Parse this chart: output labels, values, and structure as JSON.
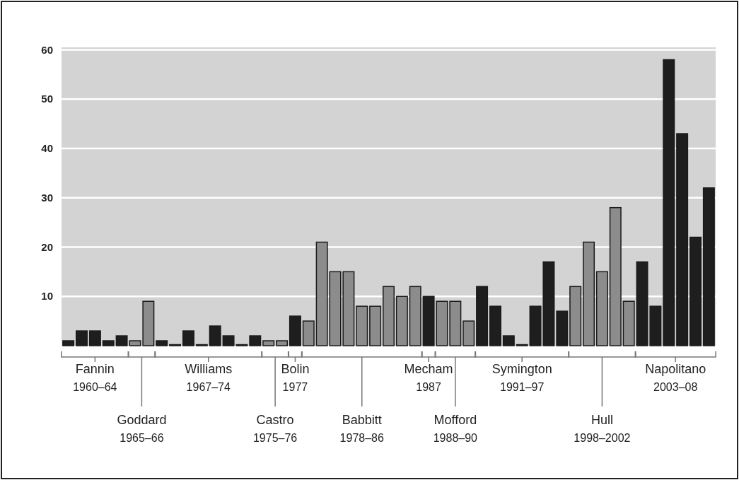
{
  "chart_data": {
    "type": "bar",
    "categories": [
      null,
      null,
      null,
      null,
      null,
      null,
      null,
      null,
      null,
      null,
      null,
      null,
      null,
      null,
      null,
      null,
      null,
      null,
      null,
      null,
      null,
      null,
      null,
      null,
      null,
      null,
      null,
      null,
      null,
      null,
      null,
      null,
      null,
      null,
      null,
      null,
      null,
      null,
      null,
      null,
      null,
      null,
      null,
      null,
      null,
      null,
      null,
      null,
      null
    ],
    "values": [
      1,
      3,
      3,
      1,
      2,
      1,
      9,
      1,
      0,
      3,
      0,
      4,
      2,
      0,
      2,
      1,
      1,
      6,
      5,
      21,
      15,
      15,
      8,
      8,
      12,
      10,
      12,
      10,
      9,
      9,
      5,
      12,
      8,
      2,
      0,
      8,
      17,
      7,
      12,
      21,
      15,
      28,
      9,
      17,
      8,
      58,
      43,
      22,
      32
    ],
    "colors": [
      "#1e1e1e",
      "#1e1e1e",
      "#1e1e1e",
      "#1e1e1e",
      "#1e1e1e",
      "#8c8c8c",
      "#8c8c8c",
      "#1e1e1e",
      "#1e1e1e",
      "#1e1e1e",
      "#1e1e1e",
      "#1e1e1e",
      "#1e1e1e",
      "#1e1e1e",
      "#1e1e1e",
      "#8c8c8c",
      "#8c8c8c",
      "#1e1e1e",
      "#8c8c8c",
      "#8c8c8c",
      "#8c8c8c",
      "#8c8c8c",
      "#8c8c8c",
      "#8c8c8c",
      "#8c8c8c",
      "#8c8c8c",
      "#8c8c8c",
      "#1e1e1e",
      "#8c8c8c",
      "#8c8c8c",
      "#8c8c8c",
      "#1e1e1e",
      "#1e1e1e",
      "#1e1e1e",
      "#1e1e1e",
      "#1e1e1e",
      "#1e1e1e",
      "#1e1e1e",
      "#8c8c8c",
      "#8c8c8c",
      "#8c8c8c",
      "#8c8c8c",
      "#8c8c8c",
      "#1e1e1e",
      "#1e1e1e",
      "#1e1e1e",
      "#1e1e1e",
      "#1e1e1e",
      "#1e1e1e"
    ],
    "ylim": [
      0,
      60.5
    ],
    "yticks": [
      10,
      20,
      30,
      40,
      50,
      60
    ],
    "grid": "y",
    "annotations": [
      "Fannin",
      "1960–64",
      "Goddard",
      "1965–66",
      "Williams",
      "1967–74",
      "Castro",
      "1975–76",
      "Bolin",
      "1977",
      "Babbitt",
      "1978–86",
      "Mecham",
      "1987",
      "Mofford",
      "1988–90",
      "Symington",
      "1991–97",
      "Hull",
      "1998–2002",
      "Napolitano",
      "2003–08"
    ]
  }
}
